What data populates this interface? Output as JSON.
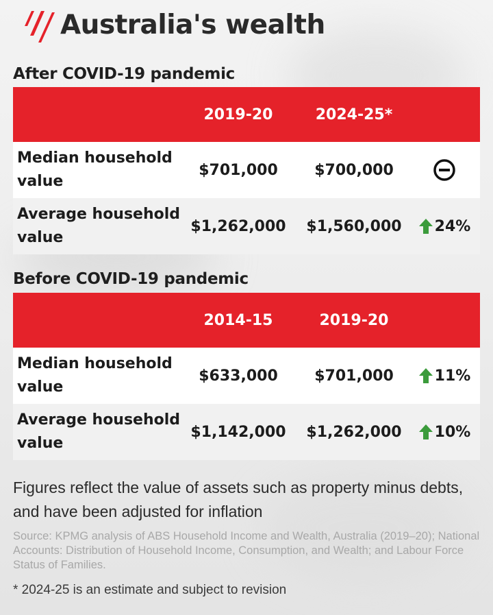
{
  "header": {
    "title": "Australia's wealth",
    "logo_icon": "sbs-logo-icon"
  },
  "colors": {
    "accent": "#e5222a",
    "up_arrow": "#3b9b3b"
  },
  "chart_data": [
    {
      "type": "table",
      "title": "After COVID-19 pandemic",
      "columns": [
        "2019-20",
        "2024-25*"
      ],
      "rows": [
        {
          "label": "Median household value",
          "values": [
            "$701,000",
            "$700,000"
          ],
          "change": "",
          "change_icon": "neutral-minus-circle-icon"
        },
        {
          "label": "Average household value",
          "values": [
            "$1,262,000",
            "$1,560,000"
          ],
          "change": "24%",
          "change_icon": "up-arrow-icon"
        }
      ]
    },
    {
      "type": "table",
      "title": "Before COVID-19 pandemic",
      "columns": [
        "2014-15",
        "2019-20"
      ],
      "rows": [
        {
          "label": "Median household value",
          "values": [
            "$633,000",
            "$701,000"
          ],
          "change": "11%",
          "change_icon": "up-arrow-icon"
        },
        {
          "label": "Average household value",
          "values": [
            "$1,142,000",
            "$1,262,000"
          ],
          "change": "10%",
          "change_icon": "up-arrow-icon"
        }
      ]
    }
  ],
  "note": "Figures reflect the value of assets such as property minus debts, and have been adjusted for inflation",
  "source": "Source: KPMG analysis of ABS Household Income and Wealth, Australia (2019–20); National Accounts: Distribution of Household Income, Consumption, and Wealth; and Labour Force Status of Families.",
  "footnote": "* 2024-25 is an estimate and subject to revision"
}
